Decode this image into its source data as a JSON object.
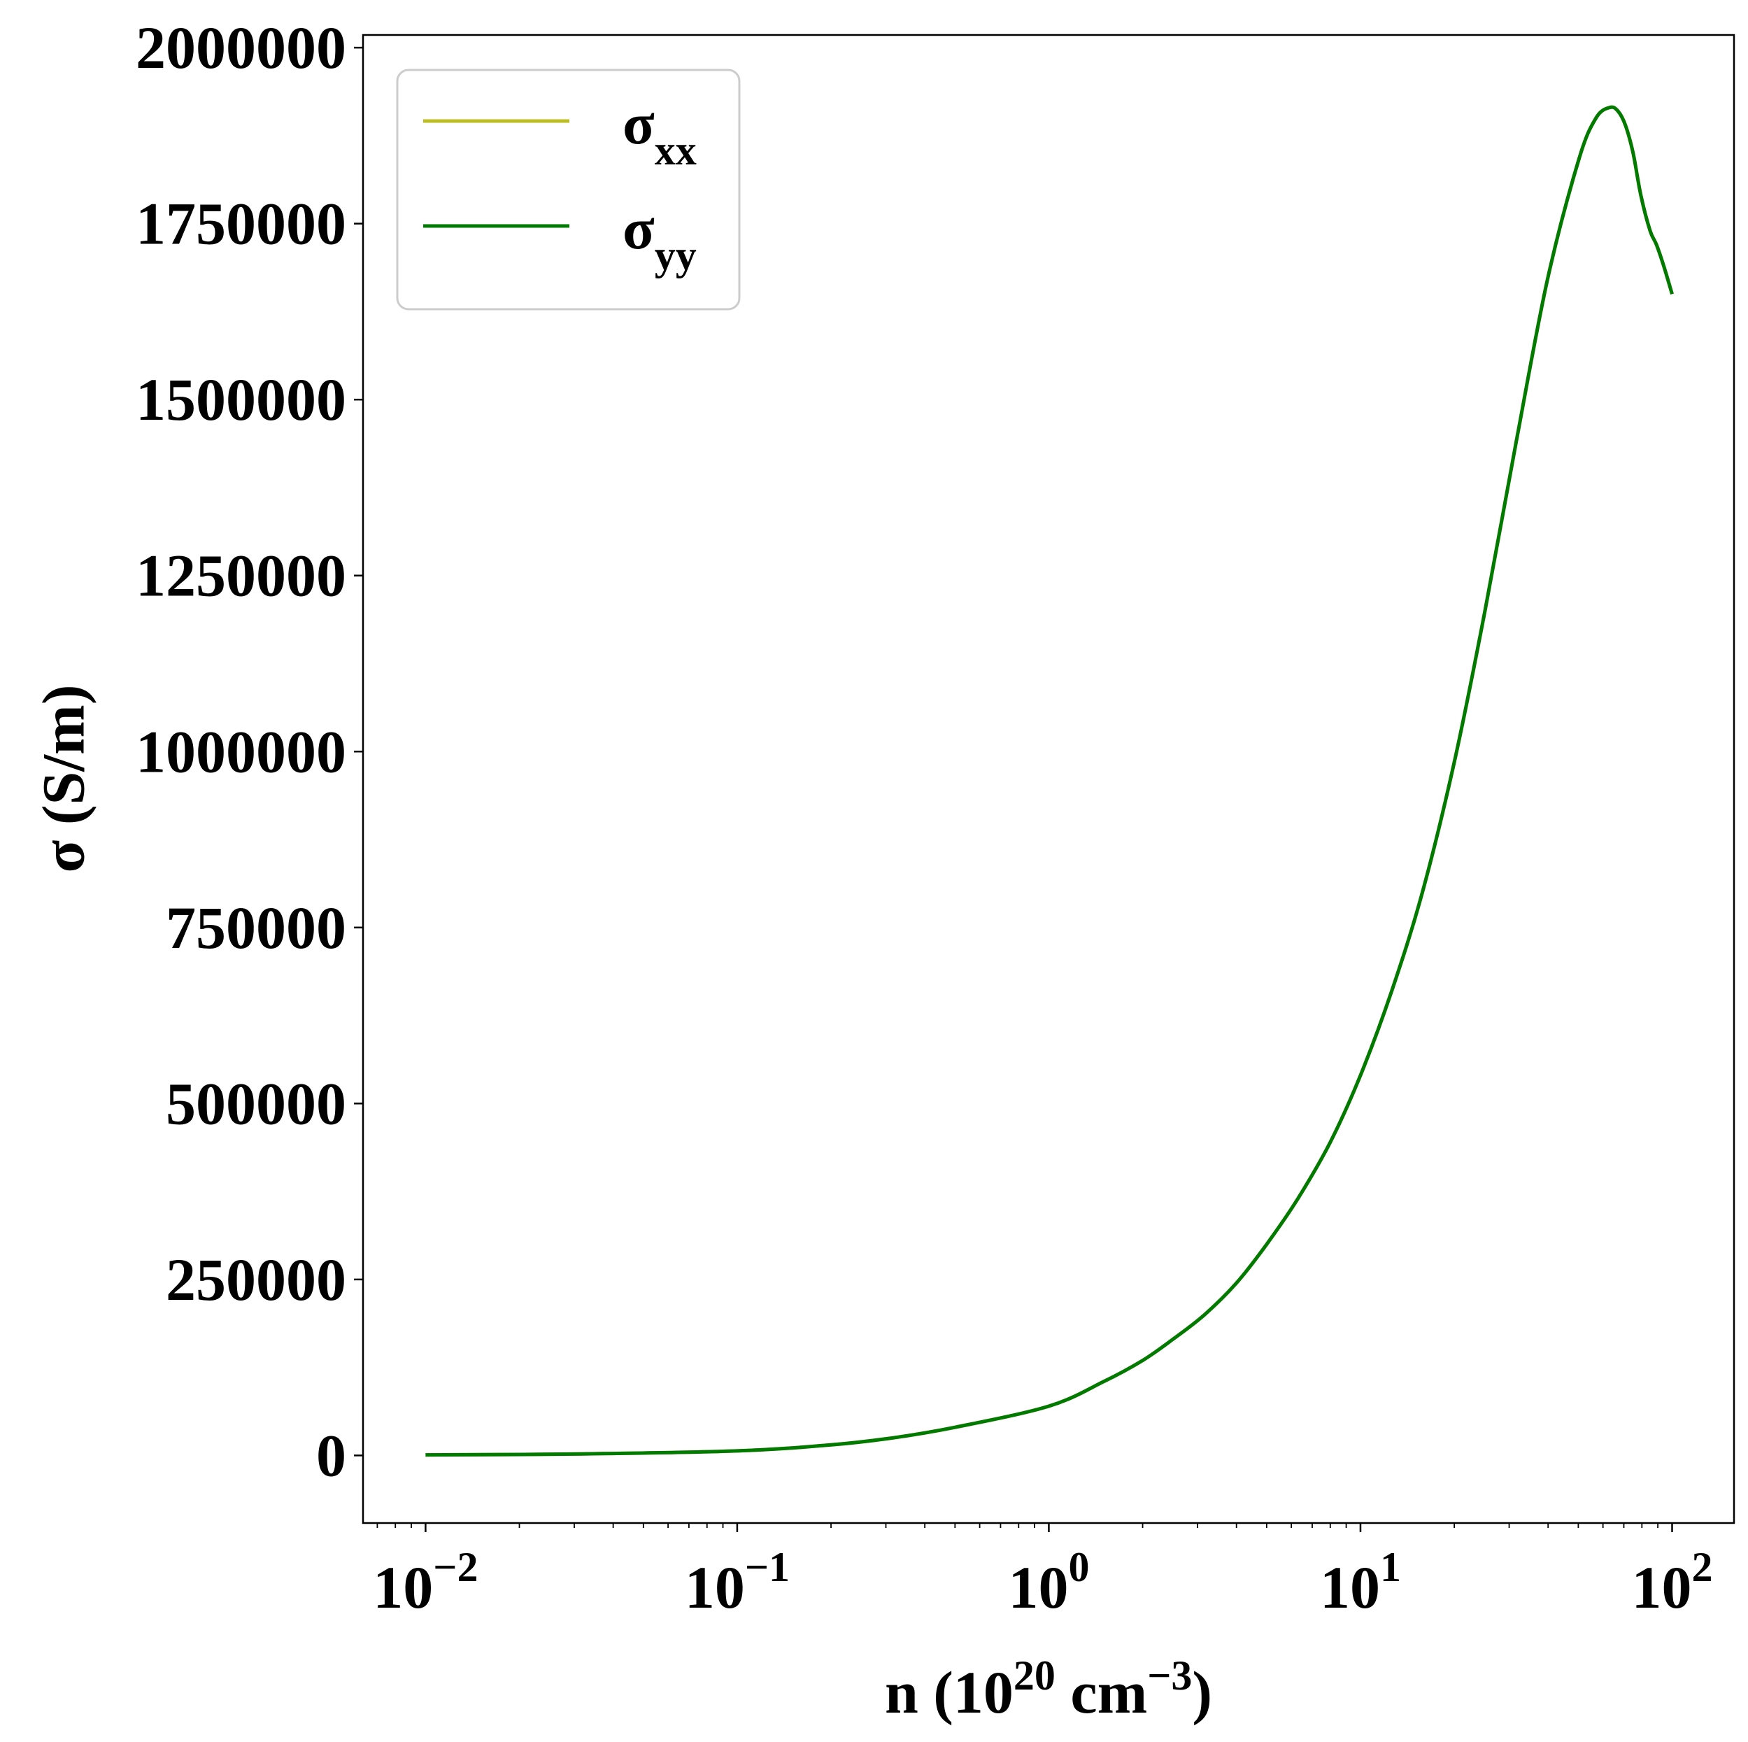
{
  "chart_data": {
    "type": "line",
    "xscale": "log",
    "xlim": [
      0.0063,
      158
    ],
    "ylim": [
      -96000,
      2018000
    ],
    "xlabel": {
      "prefix": "n (10",
      "sup1": "20",
      "middle": " cm",
      "sup2": "−3",
      "suffix": ")"
    },
    "ylabel": "σ (S/m)",
    "y_ticks": [
      0,
      250000,
      500000,
      750000,
      1000000,
      1250000,
      1500000,
      1750000,
      2000000
    ],
    "y_tick_labels": [
      "0",
      "250000",
      "500000",
      "750000",
      "1000000",
      "1250000",
      "1500000",
      "1750000",
      "2000000"
    ],
    "x_ticks": [
      0.01,
      0.1,
      1,
      10,
      100
    ],
    "x_tick_labels": [
      {
        "base": "10",
        "exp": "−2"
      },
      {
        "base": "10",
        "exp": "−1"
      },
      {
        "base": "10",
        "exp": "0"
      },
      {
        "base": "10",
        "exp": "1"
      },
      {
        "base": "10",
        "exp": "2"
      }
    ],
    "grid": false,
    "legend_position": "upper-left",
    "series": [
      {
        "name_base": "σ",
        "name_sub": "xx",
        "color": "#bcbd22",
        "x": [
          0.01,
          0.0316,
          0.1,
          0.2,
          0.316,
          0.5,
          1.0,
          1.5,
          2.0,
          2.5,
          3.16,
          4.0,
          5.0,
          6.3,
          8.0,
          10.0,
          12.6,
          15.8,
          20.0,
          25.1,
          31.6,
          39.8,
          50.1,
          57.0,
          63.1,
          67.0,
          70.8,
          75.0,
          79.4,
          85.0,
          89.1,
          94.0,
          100.0
        ],
        "y": [
          800,
          2200,
          6500,
          15000,
          25000,
          40000,
          70000,
          105000,
          135000,
          165000,
          200000,
          245000,
          300000,
          365000,
          445000,
          540000,
          660000,
          800000,
          985000,
          1200000,
          1440000,
          1670000,
          1840000,
          1900000,
          1915000,
          1910000,
          1890000,
          1850000,
          1790000,
          1740000,
          1720000,
          1690000,
          1650000
        ]
      },
      {
        "name_base": "σ",
        "name_sub": "yy",
        "color": "#007a00",
        "x": [
          0.01,
          0.0316,
          0.1,
          0.2,
          0.316,
          0.5,
          1.0,
          1.5,
          2.0,
          2.5,
          3.16,
          4.0,
          5.0,
          6.3,
          8.0,
          10.0,
          12.6,
          15.8,
          20.0,
          25.1,
          31.6,
          39.8,
          50.1,
          57.0,
          63.1,
          67.0,
          70.8,
          75.0,
          79.4,
          85.0,
          89.1,
          94.0,
          100.0
        ],
        "y": [
          800,
          2200,
          6500,
          15000,
          25000,
          40000,
          70000,
          105000,
          135000,
          165000,
          200000,
          245000,
          300000,
          365000,
          445000,
          540000,
          660000,
          800000,
          985000,
          1200000,
          1440000,
          1670000,
          1840000,
          1900000,
          1915000,
          1910000,
          1890000,
          1850000,
          1790000,
          1740000,
          1720000,
          1690000,
          1650000
        ]
      }
    ]
  }
}
